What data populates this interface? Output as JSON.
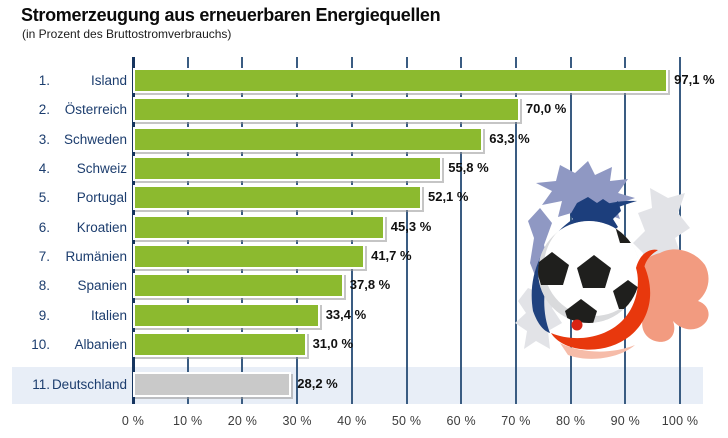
{
  "header": {
    "title": "Stromerzeugung aus erneuerbaren Energiequellen",
    "subtitle": "(in Prozent des Bruttostromverbrauchs)"
  },
  "chart_data": {
    "type": "bar",
    "orientation": "horizontal",
    "title": "Stromerzeugung aus erneuerbaren Energiequellen",
    "subtitle": "(in Prozent des Bruttostromverbrauchs)",
    "xlabel": "",
    "ylabel": "",
    "xlim": [
      0,
      100
    ],
    "grid": true,
    "legend": false,
    "x_ticks": [
      "0 %",
      "10 %",
      "20 %",
      "30 %",
      "40 %",
      "50 %",
      "60 %",
      "70 %",
      "80 %",
      "90 %",
      "100 %"
    ],
    "categories": [
      "Island",
      "Österreich",
      "Schweden",
      "Schweiz",
      "Portugal",
      "Kroatien",
      "Rumänien",
      "Spanien",
      "Italien",
      "Albanien",
      "Deutschland"
    ],
    "values": [
      97.1,
      70.0,
      63.3,
      55.8,
      52.1,
      45.3,
      41.7,
      37.8,
      33.4,
      31.0,
      28.2
    ],
    "rows": [
      {
        "rank": "1.",
        "country": "Island",
        "value": 97.1,
        "value_label": "97,1 %",
        "highlighted": false
      },
      {
        "rank": "2.",
        "country": "Österreich",
        "value": 70.0,
        "value_label": "70,0 %",
        "highlighted": false
      },
      {
        "rank": "3.",
        "country": "Schweden",
        "value": 63.3,
        "value_label": "63,3 %",
        "highlighted": false
      },
      {
        "rank": "4.",
        "country": "Schweiz",
        "value": 55.8,
        "value_label": "55,8 %",
        "highlighted": false
      },
      {
        "rank": "5.",
        "country": "Portugal",
        "value": 52.1,
        "value_label": "52,1 %",
        "highlighted": false
      },
      {
        "rank": "6.",
        "country": "Kroatien",
        "value": 45.3,
        "value_label": "45,3 %",
        "highlighted": false
      },
      {
        "rank": "7.",
        "country": "Rumänien",
        "value": 41.7,
        "value_label": "41,7 %",
        "highlighted": false
      },
      {
        "rank": "8.",
        "country": "Spanien",
        "value": 37.8,
        "value_label": "37,8 %",
        "highlighted": false
      },
      {
        "rank": "9.",
        "country": "Italien",
        "value": 33.4,
        "value_label": "33,4 %",
        "highlighted": false
      },
      {
        "rank": "10.",
        "country": "Albanien",
        "value": 31.0,
        "value_label": "31,0 %",
        "highlighted": false
      },
      {
        "rank": "11.",
        "country": "Deutschland",
        "value": 28.2,
        "value_label": "28,2 %",
        "highlighted": true
      }
    ],
    "colors": {
      "bar": "#8CBA2F",
      "highlight_bar": "#C9C9C9",
      "highlight_band": "#E8EEF7",
      "grid_line": "#3A5C82",
      "axis_line": "#16355F",
      "country_label": "#1C3D6E",
      "value_label": "#101010",
      "tick_label": "#3C3C3C"
    }
  },
  "decor": {
    "description": "soccer ball with blue and red paint swooshes (Euro 2016 France motif)",
    "colors": {
      "splash_gray": "#E2E3E7",
      "splash_blue": "#8F98C3",
      "swoosh_blue": "#20427E",
      "france_navy": "#1C3E7C",
      "swoosh_red": "#E8380D",
      "splash_salmon": "#F29B80",
      "splash_salmon_light": "#F6BCA9",
      "ball_black": "#1F1F1D",
      "ball_white": "#FFFFFF",
      "ball_shade": "#D9DADC",
      "red_dot": "#D92313"
    }
  }
}
